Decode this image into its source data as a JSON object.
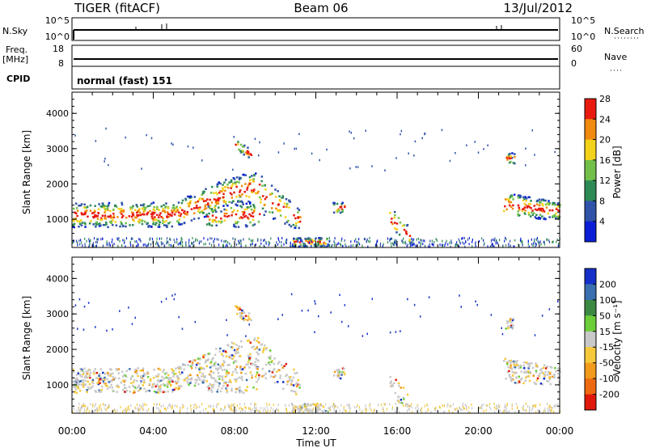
{
  "header": {
    "left": "TIGER (fitACF)",
    "center": "Beam 06",
    "right": "13/Jul/2012"
  },
  "strip_labels": {
    "nsky": "N.Sky",
    "nsearch": "N.Search",
    "freq_line1": "Freq.",
    "freq_line2": "[MHz]",
    "nave": "Nave",
    "cpid": "CPID",
    "nsky_ticks": [
      "10^5",
      "10^0"
    ],
    "nsearch_ticks": [
      "10^5",
      "10^0"
    ],
    "freq_ticks": [
      "18",
      "8"
    ],
    "nave_ticks": [
      "60",
      "0"
    ],
    "cpid_text": "normal (fast) 151"
  },
  "chart_data": [
    {
      "type": "heatmap",
      "name": "power",
      "ylabel": "Slant Range [km]",
      "yticks": [
        "1000",
        "2000",
        "3000",
        "4000"
      ],
      "ylim": [
        200,
        4600
      ],
      "xlim": [
        0,
        24
      ],
      "colorbar_label": "Power [dB]",
      "colorbar_ticks": [
        "4",
        "8",
        "12",
        "16",
        "20",
        "24",
        "28"
      ],
      "colorbar_colors": [
        "#0a1fd6",
        "#2f53a8",
        "#2e8a55",
        "#72c04a",
        "#f5d21a",
        "#f08a10",
        "#e81a10"
      ]
    },
    {
      "type": "heatmap",
      "name": "velocity",
      "ylabel": "Slant Range [km]",
      "yticks": [
        "1000",
        "2000",
        "3000",
        "4000"
      ],
      "ylim": [
        200,
        4600
      ],
      "xlim": [
        0,
        24
      ],
      "xticks": [
        "00:00",
        "04:00",
        "08:00",
        "12:00",
        "16:00",
        "20:00",
        "00:00"
      ],
      "xlabel": "Time UT",
      "colorbar_label": "Velocity [m s⁻¹]",
      "colorbar_ticks": [
        "200",
        "100",
        "50",
        "15",
        "-15",
        "-50",
        "-100",
        "-200"
      ],
      "colorbar_colors": [
        "#1530c8",
        "#3a6fb0",
        "#3d8a44",
        "#6ccf3a",
        "#c8c8c8",
        "#f5c93a",
        "#f29a1a",
        "#ee6a10",
        "#e0180c"
      ]
    }
  ]
}
